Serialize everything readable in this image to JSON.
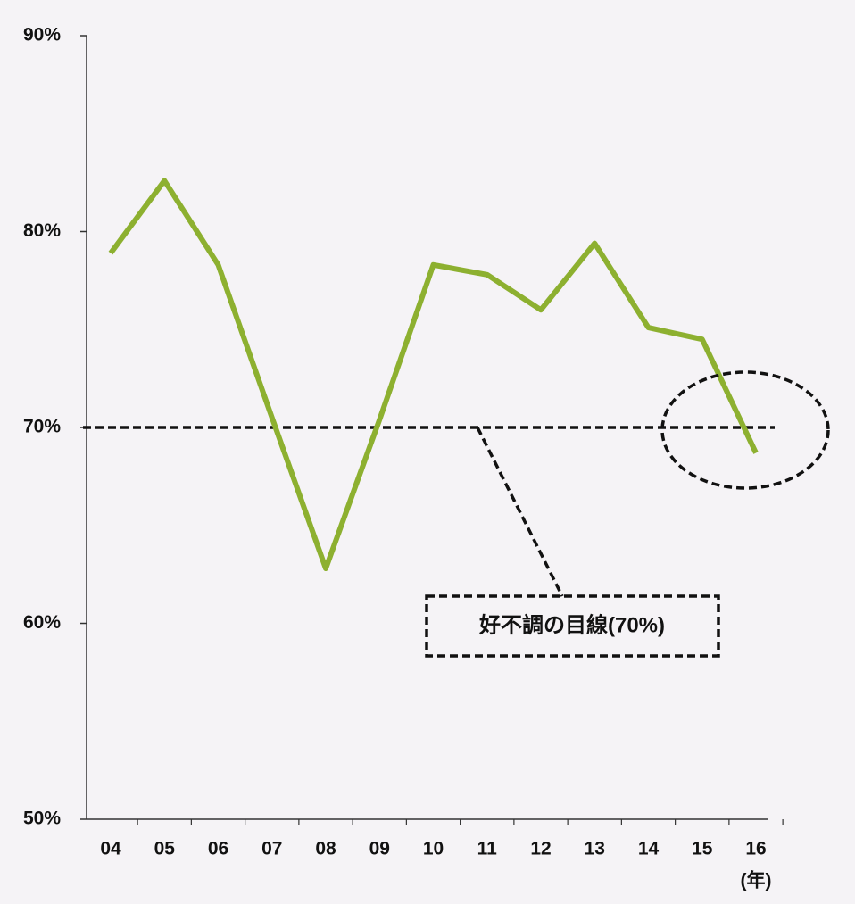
{
  "chart_data": {
    "type": "line",
    "categories": [
      "04",
      "05",
      "06",
      "07",
      "08",
      "09",
      "10",
      "11",
      "12",
      "13",
      "14",
      "15",
      "16"
    ],
    "x_label": "(年)",
    "series": [
      {
        "color": "#8db030",
        "values": [
          78.9,
          82.6,
          78.3,
          70.5,
          62.8,
          70.4,
          78.3,
          77.8,
          76.0,
          79.4,
          75.1,
          74.5,
          68.7
        ]
      }
    ],
    "ylim": [
      50,
      90
    ],
    "yticks": [
      {
        "value": 50,
        "label": "50%"
      },
      {
        "value": 60,
        "label": "60%"
      },
      {
        "value": 70,
        "label": "70%"
      },
      {
        "value": 80,
        "label": "80%"
      },
      {
        "value": 90,
        "label": "90%"
      }
    ],
    "reference_line": {
      "value": 70,
      "label": "好不調の目線(70%)"
    },
    "grid": false
  }
}
